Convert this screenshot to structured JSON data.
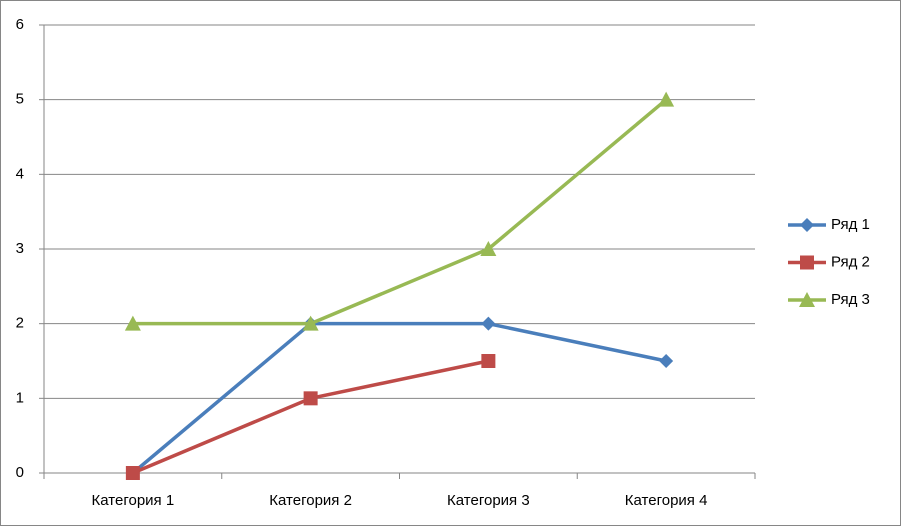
{
  "chart_data": {
    "type": "line",
    "categories": [
      "Категория 1",
      "Категория 2",
      "Категория 3",
      "Категория 4"
    ],
    "series": [
      {
        "name": "Ряд 1",
        "color": "#4a7ebb",
        "marker": "diamond",
        "values": [
          0,
          2,
          2,
          1.5
        ]
      },
      {
        "name": "Ряд 2",
        "color": "#be4b48",
        "marker": "square",
        "values": [
          0,
          1,
          1.5,
          null
        ]
      },
      {
        "name": "Ряд 3",
        "color": "#98b954",
        "marker": "triangle",
        "values": [
          2,
          2,
          3,
          5
        ]
      }
    ],
    "ylim": [
      0,
      6
    ],
    "yticks": [
      0,
      1,
      2,
      3,
      4,
      5,
      6
    ],
    "grid": true,
    "legend": "right"
  }
}
